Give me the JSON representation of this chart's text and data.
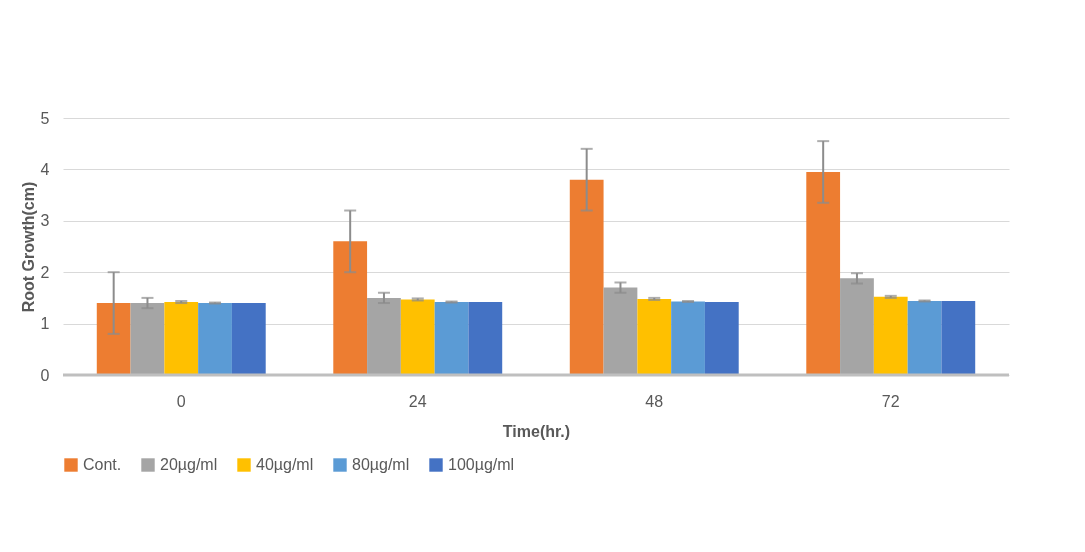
{
  "chart_data": {
    "type": "bar",
    "xlabel": "Time(hr.)",
    "ylabel": "Root Growth(cm)",
    "categories": [
      "0",
      "24",
      "48",
      "72"
    ],
    "series": [
      {
        "name": "Cont.",
        "color": "#ed7d31",
        "values": [
          1.4,
          2.6,
          3.8,
          3.95
        ],
        "errors": [
          0.6,
          0.6,
          0.6,
          0.6
        ]
      },
      {
        "name": "20µg/ml",
        "color": "#a5a5a5",
        "values": [
          1.4,
          1.5,
          1.7,
          1.88
        ],
        "errors": [
          0.1,
          0.1,
          0.1,
          0.1
        ]
      },
      {
        "name": "40µg/ml",
        "color": "#ffc000",
        "values": [
          1.42,
          1.47,
          1.48,
          1.52
        ],
        "errors": [
          0.02,
          0.02,
          0.02,
          0.02
        ]
      },
      {
        "name": "80µg/ml",
        "color": "#5b9bd5",
        "values": [
          1.4,
          1.42,
          1.43,
          1.44
        ],
        "errors": [
          0.01,
          0.01,
          0.01,
          0.01
        ]
      },
      {
        "name": "100µg/ml",
        "color": "#4472c4",
        "values": [
          1.4,
          1.42,
          1.42,
          1.44
        ],
        "errors": [
          null,
          null,
          null,
          null
        ]
      }
    ],
    "ylim": [
      0,
      5
    ],
    "yticks": [
      0,
      1,
      2,
      3,
      4,
      5
    ],
    "grid": "y",
    "legend": "bottom"
  }
}
